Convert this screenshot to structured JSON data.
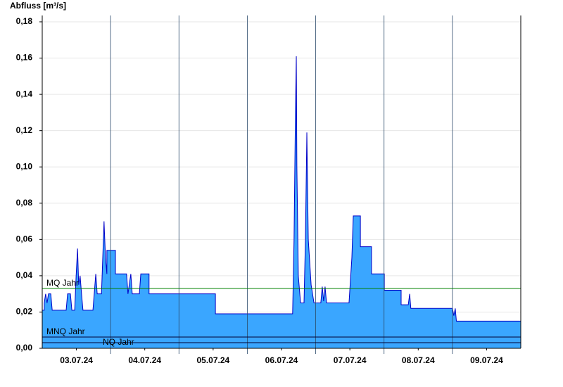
{
  "chart_data": {
    "type": "area",
    "y_axis_title": "Abfluss [m³/s]",
    "xlim": [
      0,
      168
    ],
    "xticks": [
      {
        "value": 12,
        "label": "03.07.24"
      },
      {
        "value": 36,
        "label": "04.07.24"
      },
      {
        "value": 60,
        "label": "05.07.24"
      },
      {
        "value": 84,
        "label": "06.07.24"
      },
      {
        "value": 108,
        "label": "07.07.24"
      },
      {
        "value": 132,
        "label": "08.07.24"
      },
      {
        "value": 156,
        "label": "09.07.24"
      }
    ],
    "ylim": [
      0,
      0.18
    ],
    "yticks": [
      {
        "value": 0,
        "label": "0,00"
      },
      {
        "value": 0.02,
        "label": "0,02"
      },
      {
        "value": 0.04,
        "label": "0,04"
      },
      {
        "value": 0.06,
        "label": "0,06"
      },
      {
        "value": 0.08,
        "label": "0,08"
      },
      {
        "value": 0.1,
        "label": "0,10"
      },
      {
        "value": 0.12,
        "label": "0,12"
      },
      {
        "value": 0.14,
        "label": "0,14"
      },
      {
        "value": 0.16,
        "label": "0,16"
      },
      {
        "value": 0.18,
        "label": "0,18"
      }
    ],
    "grid": true,
    "series": [
      {
        "color": "#3aa6ff",
        "line_color": "#0000c8",
        "x": [
          0,
          0.7,
          0.7,
          1.2,
          1.7,
          2.2,
          3.0,
          3.5,
          8.4,
          8.9,
          9.9,
          10.4,
          11.4,
          11.9,
          12.4,
          12.8,
          13.3,
          13.8,
          14.3,
          17.8,
          18.8,
          19.3,
          20.8,
          21.7,
          22.2,
          22.7,
          22.7,
          25.7,
          25.7,
          29.6,
          30.1,
          31.1,
          31.6,
          34.1,
          34.6,
          37.5,
          37.5,
          60.8,
          60.8,
          87.9,
          88.4,
          88.9,
          89.2,
          89.4,
          89.9,
          90.7,
          91.9,
          92.4,
          92.9,
          93.4,
          94.4,
          95.4,
          97.8,
          98.3,
          98.8,
          99.3,
          99.8,
          107.7,
          108.7,
          109.2,
          111.7,
          111.7,
          115.6,
          115.6,
          120.1,
          120.1,
          126.0,
          126.0,
          128.5,
          129.0,
          129.4,
          144.0,
          144.5,
          145.0,
          145.4,
          168
        ],
        "values": [
          0.021,
          0.021,
          0.025,
          0.03,
          0.025,
          0.03,
          0.03,
          0.021,
          0.021,
          0.03,
          0.03,
          0.021,
          0.021,
          0.04,
          0.055,
          0.035,
          0.04,
          0.03,
          0.021,
          0.021,
          0.041,
          0.03,
          0.03,
          0.07,
          0.05,
          0.041,
          0.054,
          0.054,
          0.041,
          0.041,
          0.03,
          0.041,
          0.03,
          0.03,
          0.041,
          0.041,
          0.03,
          0.03,
          0.019,
          0.019,
          0.06,
          0.13,
          0.161,
          0.1,
          0.04,
          0.025,
          0.025,
          0.06,
          0.119,
          0.06,
          0.035,
          0.025,
          0.025,
          0.034,
          0.026,
          0.034,
          0.025,
          0.025,
          0.05,
          0.073,
          0.073,
          0.056,
          0.056,
          0.041,
          0.041,
          0.032,
          0.032,
          0.024,
          0.024,
          0.03,
          0.022,
          0.022,
          0.018,
          0.022,
          0.015,
          0.015
        ]
      }
    ],
    "reference_lines": [
      {
        "label": "MQ Jahr",
        "value": 0.033,
        "color": "#008000"
      },
      {
        "label": "MNQ Jahr",
        "value": 0.0062,
        "color": "#000033"
      },
      {
        "label": "NQ Jahr",
        "value": 0.0031,
        "color": "#000033"
      }
    ]
  }
}
